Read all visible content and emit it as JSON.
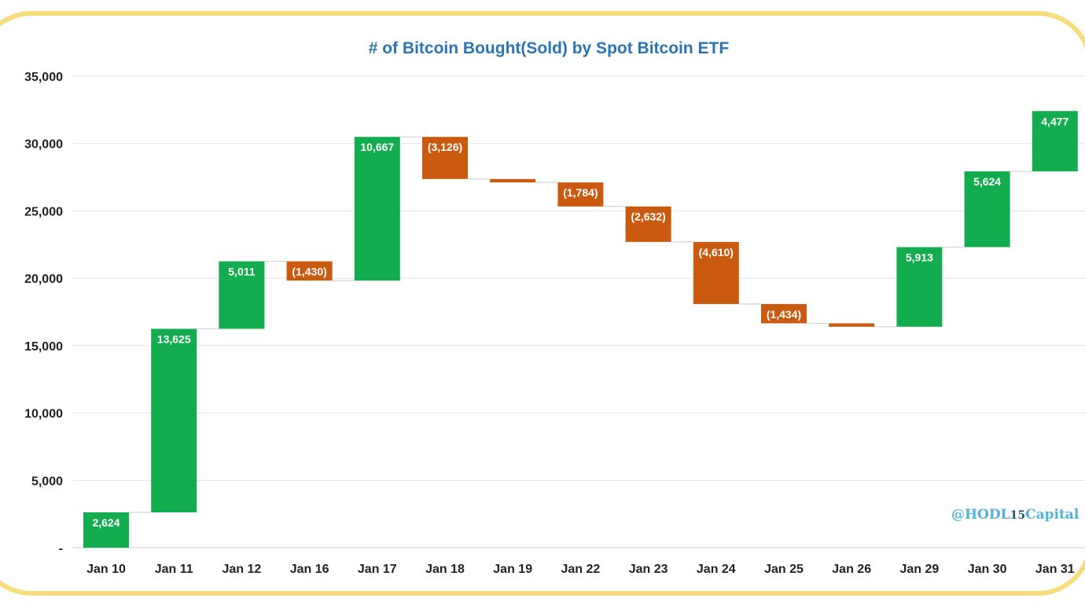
{
  "chart_data": {
    "type": "bar",
    "subtype": "waterfall",
    "title": "# of Bitcoin Bought(Sold) by Spot Bitcoin ETF",
    "xlabel": "",
    "ylabel": "",
    "ylim": [
      0,
      35000
    ],
    "yticks": [
      0,
      5000,
      10000,
      15000,
      20000,
      25000,
      30000,
      35000
    ],
    "ytick_labels": [
      "-",
      "5,000",
      "10,000",
      "15,000",
      "20,000",
      "25,000",
      "30,000",
      "35,000"
    ],
    "grid": true,
    "categories": [
      "Jan 10",
      "Jan 11",
      "Jan 12",
      "Jan 16",
      "Jan 17",
      "Jan 18",
      "Jan 19",
      "Jan 22",
      "Jan 23",
      "Jan 24",
      "Jan 25",
      "Jan 26",
      "Jan 29",
      "Jan 30",
      "Jan 31"
    ],
    "values": [
      2624,
      13625,
      5011,
      -1430,
      10667,
      -3126,
      -255,
      -1784,
      -2632,
      -4610,
      -1434,
      -255,
      5913,
      5624,
      4477
    ],
    "data_labels": [
      "2,624",
      "13,625",
      "5,011",
      "(1,430)",
      "10,667",
      "(3,126)",
      "",
      "(1,784)",
      "(2,632)",
      "(4,610)",
      "(1,434)",
      "",
      "5,913",
      "5,624",
      "4,477"
    ],
    "colors": {
      "increase": "#13ad50",
      "decrease": "#c95a10"
    },
    "credit": {
      "prefix": "@HODL",
      "digits": "15",
      "suffix": "Capital"
    },
    "credit_color": "#4fb3d9"
  }
}
